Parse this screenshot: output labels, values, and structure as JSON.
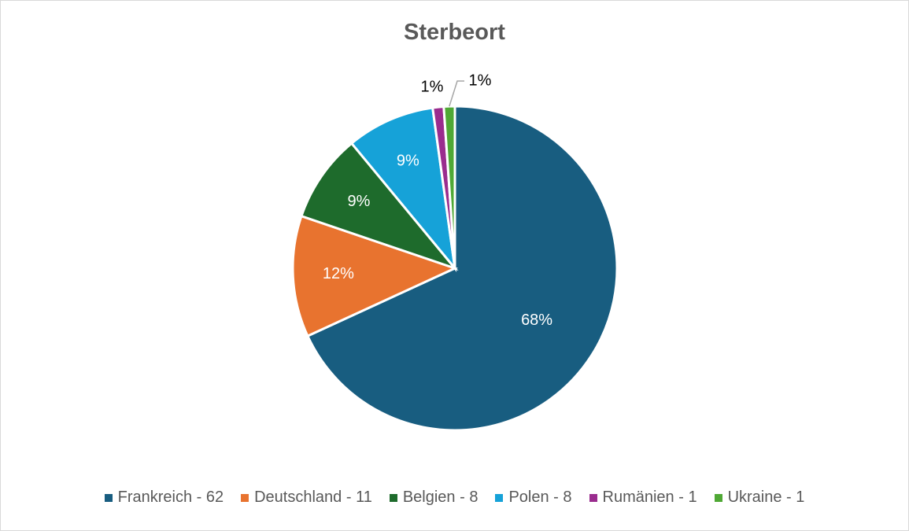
{
  "chart_data": {
    "type": "pie",
    "title": "Sterbeort",
    "categories": [
      "Frankreich",
      "Deutschland",
      "Belgien",
      "Polen",
      "Rumänien",
      "Ukraine"
    ],
    "values": [
      62,
      11,
      8,
      8,
      1,
      1
    ],
    "legend_labels": [
      "Frankreich - 62",
      "Deutschland - 11",
      "Belgien - 8",
      "Polen - 8",
      "Rumänien - 1",
      "Ukraine - 1"
    ],
    "data_labels": [
      "68%",
      "12%",
      "9%",
      "9%",
      "1%",
      "1%"
    ],
    "colors": [
      "#185d80",
      "#e8732f",
      "#1e6b2c",
      "#16a2d8",
      "#9a2c8e",
      "#4fa835"
    ],
    "legend_position": "bottom"
  }
}
